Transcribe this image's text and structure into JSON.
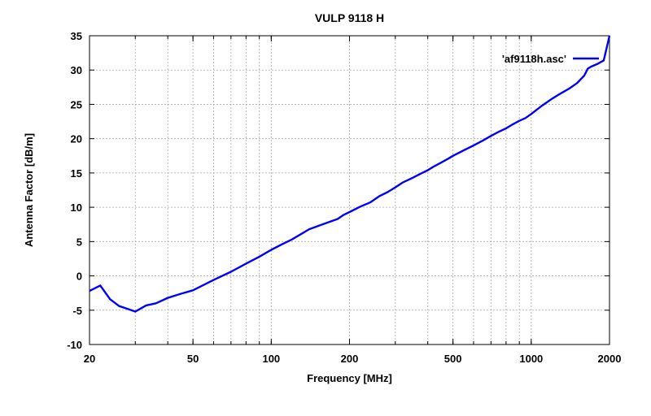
{
  "chart_data": {
    "type": "line",
    "title": "VULP 9118 H",
    "xlabel": "Frequency [MHz]",
    "ylabel": "Antenna Factor [dB/m]",
    "xscale": "log",
    "xlim": [
      20,
      2000
    ],
    "ylim": [
      -10,
      35
    ],
    "grid": true,
    "legend_position": "top-right",
    "xticks": [
      20,
      50,
      100,
      200,
      500,
      1000,
      2000
    ],
    "xtick_labels": [
      "20",
      "50",
      "100",
      "200",
      "500",
      "1000",
      "2000"
    ],
    "yticks": [
      -10,
      -5,
      0,
      5,
      10,
      15,
      20,
      25,
      30,
      35
    ],
    "ytick_labels": [
      "-10",
      "-5",
      "0",
      "5",
      "10",
      "15",
      "20",
      "25",
      "30",
      "35"
    ],
    "series": [
      {
        "name": "'af9118h.asc'",
        "color": "#0000ff",
        "x": [
          20,
          22,
          24,
          26,
          28,
          30,
          33,
          36,
          40,
          45,
          50,
          60,
          70,
          80,
          90,
          100,
          110,
          120,
          140,
          160,
          180,
          190,
          200,
          220,
          240,
          260,
          280,
          300,
          320,
          350,
          380,
          400,
          420,
          450,
          480,
          500,
          550,
          600,
          650,
          700,
          750,
          800,
          850,
          900,
          950,
          1000,
          1100,
          1200,
          1300,
          1400,
          1500,
          1600,
          1650,
          1700,
          1800,
          1900,
          2000
        ],
        "y": [
          -2.2,
          -1.4,
          -3.4,
          -4.4,
          -4.8,
          -5.2,
          -4.3,
          -4.0,
          -3.2,
          -2.6,
          -2.1,
          -0.6,
          0.6,
          1.8,
          2.8,
          3.8,
          4.6,
          5.3,
          6.8,
          7.6,
          8.3,
          8.9,
          9.3,
          10.1,
          10.7,
          11.6,
          12.2,
          12.9,
          13.6,
          14.3,
          15.0,
          15.4,
          15.9,
          16.5,
          17.1,
          17.5,
          18.3,
          19.0,
          19.7,
          20.4,
          21.0,
          21.5,
          22.1,
          22.6,
          23.0,
          23.6,
          24.8,
          25.8,
          26.6,
          27.3,
          28.1,
          29.2,
          30.2,
          30.5,
          30.9,
          31.4,
          35.0
        ]
      }
    ]
  }
}
